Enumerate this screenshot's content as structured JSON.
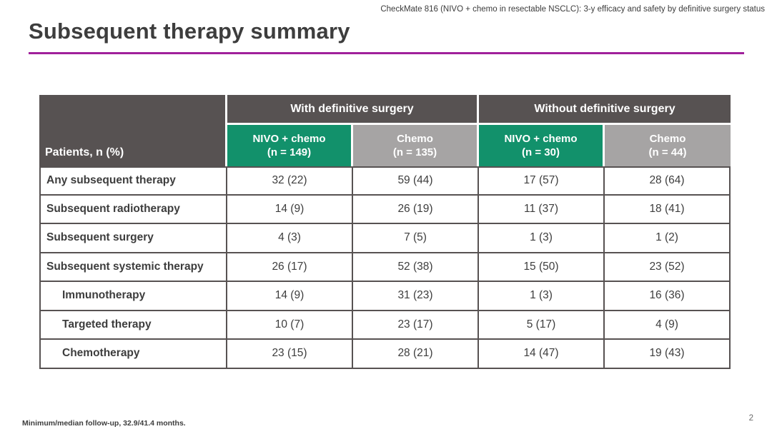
{
  "slide": {
    "header_note": "CheckMate 816 (NIVO + chemo in resectable NSCLC): 3-y efficacy and safety by definitive surgery status",
    "title": "Subsequent therapy summary",
    "footnote": "Minimum/median follow-up, 32.9/41.4 months.",
    "page_number": "2"
  },
  "colors": {
    "accent_line": "#a0209b",
    "header_dark": "#575252",
    "nivo_green": "#12916b",
    "chemo_gray": "#a6a4a4"
  },
  "table": {
    "row_header": "Patients, n (%)",
    "group_headers": [
      {
        "label": "With definitive surgery"
      },
      {
        "label": "Without definitive surgery"
      }
    ],
    "column_headers": [
      {
        "name": "NIVO + chemo",
        "n": "(n = 149)"
      },
      {
        "name": "Chemo",
        "n": "(n = 135)"
      },
      {
        "name": "NIVO + chemo",
        "n": "(n = 30)"
      },
      {
        "name": "Chemo",
        "n": "(n = 44)"
      }
    ],
    "rows": [
      {
        "label": "Any subsequent therapy",
        "indent": false,
        "values": [
          "32 (22)",
          "59 (44)",
          "17 (57)",
          "28 (64)"
        ]
      },
      {
        "label": "Subsequent radiotherapy",
        "indent": false,
        "values": [
          "14 (9)",
          "26 (19)",
          "11 (37)",
          "18 (41)"
        ]
      },
      {
        "label": "Subsequent surgery",
        "indent": false,
        "values": [
          "4 (3)",
          "7 (5)",
          "1 (3)",
          "1 (2)"
        ]
      },
      {
        "label": "Subsequent systemic therapy",
        "indent": false,
        "values": [
          "26 (17)",
          "52 (38)",
          "15 (50)",
          "23 (52)"
        ]
      },
      {
        "label": "Immunotherapy",
        "indent": true,
        "values": [
          "14 (9)",
          "31 (23)",
          "1 (3)",
          "16 (36)"
        ]
      },
      {
        "label": "Targeted therapy",
        "indent": true,
        "values": [
          "10 (7)",
          "23 (17)",
          "5 (17)",
          "4 (9)"
        ]
      },
      {
        "label": "Chemotherapy",
        "indent": true,
        "values": [
          "23 (15)",
          "28 (21)",
          "14 (47)",
          "19 (43)"
        ]
      }
    ]
  }
}
